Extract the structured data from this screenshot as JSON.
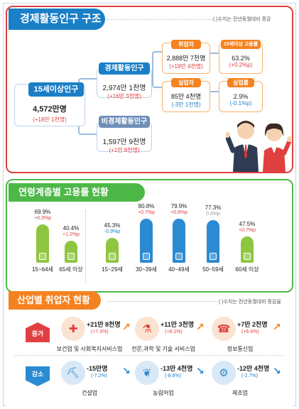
{
  "structure": {
    "title": "경제활동인구 구조",
    "note": "( )수치는 전년동월대비 증감",
    "pop15": {
      "label": "15세이상인구",
      "value": "4,572만명",
      "change": "(+18만 1천명)"
    },
    "active": {
      "label": "경제활동인구",
      "value": "2,974만 1천명",
      "change": "(+16만 3천명)"
    },
    "inactive": {
      "label": "비경제활동인구",
      "value": "1,597만 9천명",
      "change": "(+1만 8천명)"
    },
    "employed": {
      "label": "취업자",
      "value": "2,888만 7천명",
      "change": "(+19만 4천명)"
    },
    "unemployed": {
      "label": "실업자",
      "value": "85만 4천명",
      "change": "(-3만 1천명)"
    },
    "emp_rate": {
      "label": "15세이상 고용률",
      "value": "63.2%",
      "change": "(+0.2%p)"
    },
    "unemp_rate": {
      "label": "실업률",
      "value": "2.9%",
      "change": "(-0.1%p)"
    }
  },
  "age": {
    "title": "연령계층별 고용률 현황",
    "groups": [
      {
        "age": "15~64세",
        "rate": "69.9%",
        "change": "+0.3%p",
        "value": 69.9,
        "color": "#8fc641",
        "change_color": "#e0403f"
      },
      {
        "age": "65세 이상",
        "rate": "40.4%",
        "change": "+1.2%p",
        "value": 40.4,
        "color": "#8fc641",
        "change_color": "#e0403f"
      },
      {
        "age": "15~29세",
        "rate": "45.3%",
        "change": "-0.9%p",
        "value": 45.3,
        "color": "#8fc641",
        "change_color": "#1a7fc6"
      },
      {
        "age": "30~39세",
        "rate": "80.8%",
        "change": "+0.7%p",
        "value": 80.8,
        "color": "#2a8ad2",
        "change_color": "#e0403f"
      },
      {
        "age": "40~49세",
        "rate": "79.9%",
        "change": "+0.8%p",
        "value": 79.9,
        "color": "#2a8ad2",
        "change_color": "#e0403f"
      },
      {
        "age": "50~59세",
        "rate": "77.3%",
        "change": "0.0%p",
        "value": 77.3,
        "color": "#2a8ad2",
        "change_color": "#999999"
      },
      {
        "age": "60세 이상",
        "rate": "47.5%",
        "change": "+0.7%p",
        "value": 47.5,
        "color": "#8fc641",
        "change_color": "#e0403f"
      }
    ]
  },
  "industry": {
    "title": "산업별 취업자 현황",
    "note": "( )수치는 전년동월대비 증감율",
    "increase_label": "증가",
    "decrease_label": "감소",
    "increase": [
      {
        "name": "보건업 및 사회복지서비스업",
        "value": "+21만 8천명",
        "change": "(+7.3%)",
        "icon": "medical-kit-icon"
      },
      {
        "name": "전문,과학 및 기술 서비스업",
        "value": "+11만 3천명",
        "change": "(+8.1%)",
        "icon": "lab-flask-icon"
      },
      {
        "name": "정보통신업",
        "value": "+7만 2천명",
        "change": "(+6.6%)",
        "icon": "phone-network-icon"
      }
    ],
    "decrease": [
      {
        "name": "건설업",
        "value": "-15만명",
        "change": "(-7.2%)",
        "icon": "excavator-icon"
      },
      {
        "name": "농림어업",
        "value": "-13만 4천명",
        "change": "(-8.6%)",
        "icon": "wheat-icon"
      },
      {
        "name": "제조업",
        "value": "-12만 4천명",
        "change": "(-2.7%)",
        "icon": "gear-icon"
      }
    ]
  }
}
